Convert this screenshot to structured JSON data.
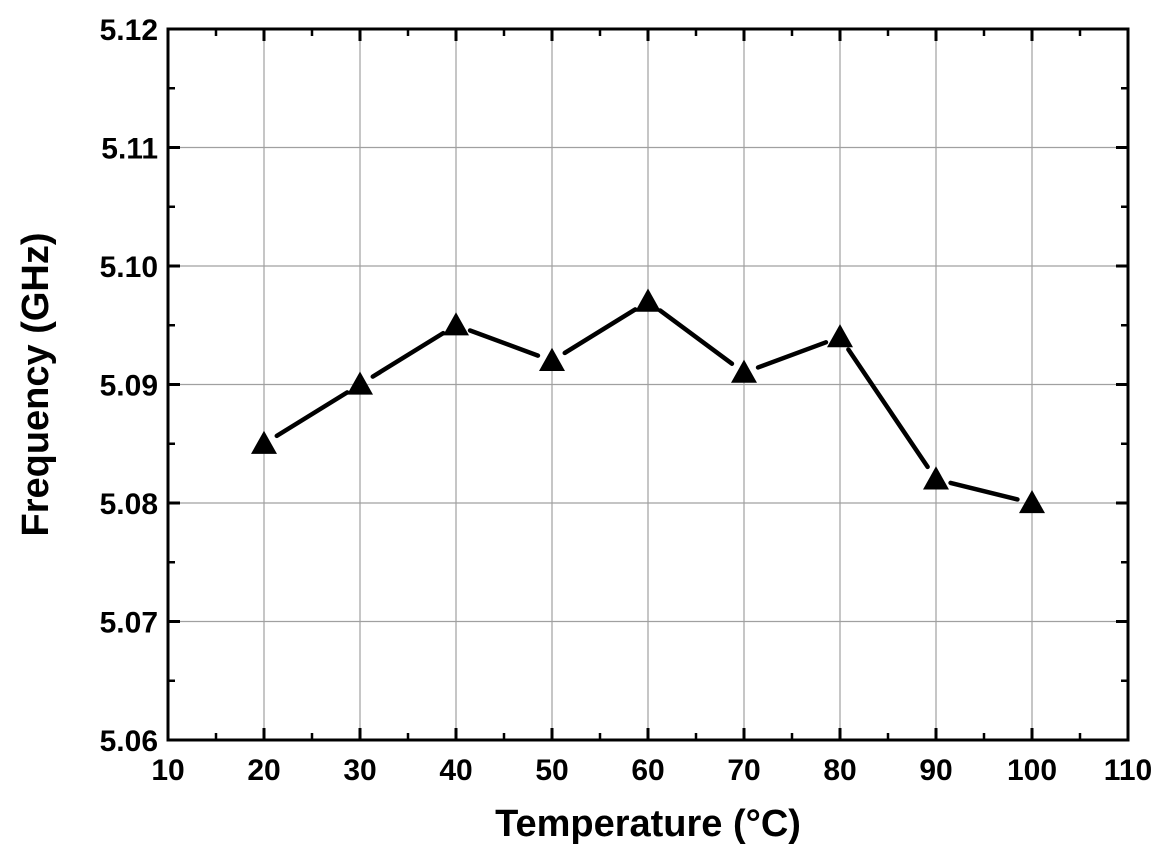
{
  "chart_data": {
    "type": "line",
    "title": "",
    "xlabel": "Temperature (°C)",
    "ylabel": "Frequency (GHz)",
    "xlim": [
      10,
      110
    ],
    "ylim": [
      5.06,
      5.12
    ],
    "xticks": [
      "10",
      "20",
      "30",
      "40",
      "50",
      "60",
      "70",
      "80",
      "90",
      "100",
      "110"
    ],
    "yticks": [
      "5.06",
      "5.07",
      "5.08",
      "5.09",
      "5.10",
      "5.11",
      "5.12"
    ],
    "grid": true,
    "marker": "triangle",
    "series": [
      {
        "x": [
          20,
          30,
          40,
          50,
          60,
          70,
          80,
          90,
          100
        ],
        "y": [
          5.085,
          5.09,
          5.095,
          5.092,
          5.097,
          5.091,
          5.094,
          5.082,
          5.08
        ]
      }
    ],
    "colors": {
      "line": "#000000",
      "grid": "#a0a0a0",
      "axis": "#000000"
    }
  }
}
